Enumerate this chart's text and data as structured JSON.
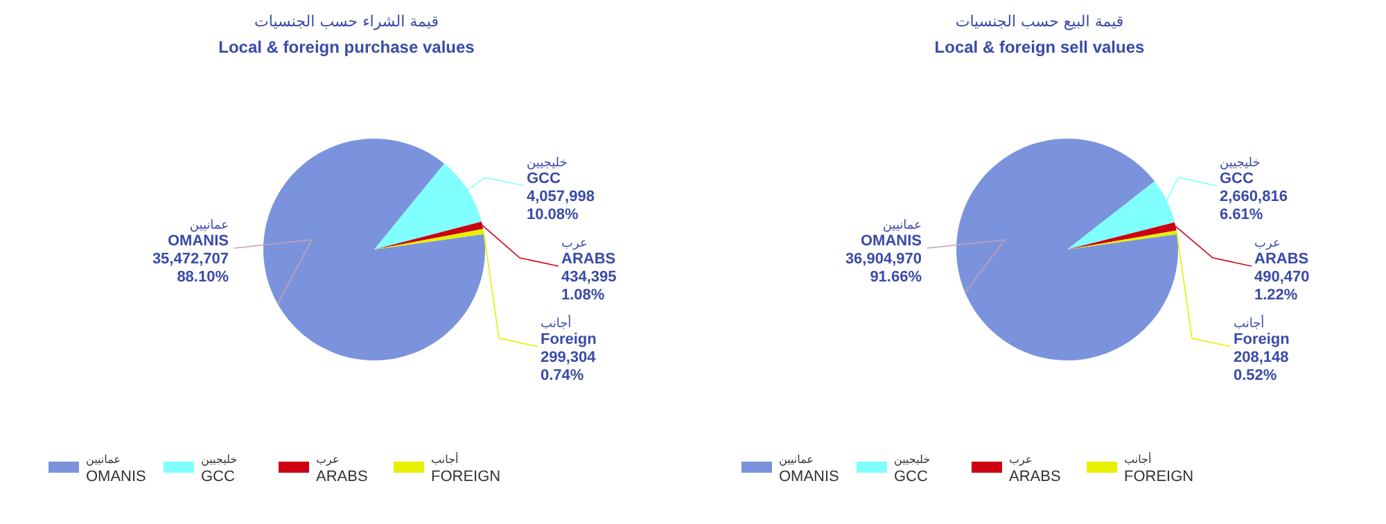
{
  "chart_data": [
    {
      "type": "pie",
      "title": "قيمة الشراء حسب الجنسيات",
      "subtitle": "Local & foreign purchase values",
      "categories": [
        "عمانيين\nOMANIS",
        "خليجيين\nGCC",
        "عرب\nARABS",
        "أجانب\nFOREIGN"
      ],
      "values": [
        35472707,
        4057998,
        434395,
        299304
      ],
      "colors": [
        "#7b93dc",
        "#80ffff",
        "#cc0011",
        "#e6f000"
      ],
      "value_labels": [
        "عمانيين\nOMANIS\n35,472,707\n88.10%",
        "خليجيين\nGCC\n4,057,998\n10.08%",
        "عرب\nARABS\n434,395\n1.08%",
        "أجانب\nForeign\n299,304\n0.74%"
      ],
      "legend": "bottom"
    },
    {
      "type": "pie",
      "title": "قيمة البيع حسب الجنسيات",
      "subtitle": "Local & foreign sell values",
      "categories": [
        "عمانيين\nOMANIS",
        "خليجيين\nGCC",
        "عرب\nARABS",
        "أجانب\nFOREIGN"
      ],
      "values": [
        36904970,
        2660816,
        490470,
        208148
      ],
      "colors": [
        "#7b93dc",
        "#80ffff",
        "#cc0011",
        "#e6f000"
      ],
      "value_labels": [
        "عمانيين\nOMANIS\n36,904,970\n91.66%",
        "خليجيين\nGCC\n2,660,816\n6.61%",
        "عرب\nARABS\n490,470\n1.22%",
        "أجانب\nForeign\n208,148\n0.52%"
      ],
      "legend": "bottom"
    }
  ]
}
